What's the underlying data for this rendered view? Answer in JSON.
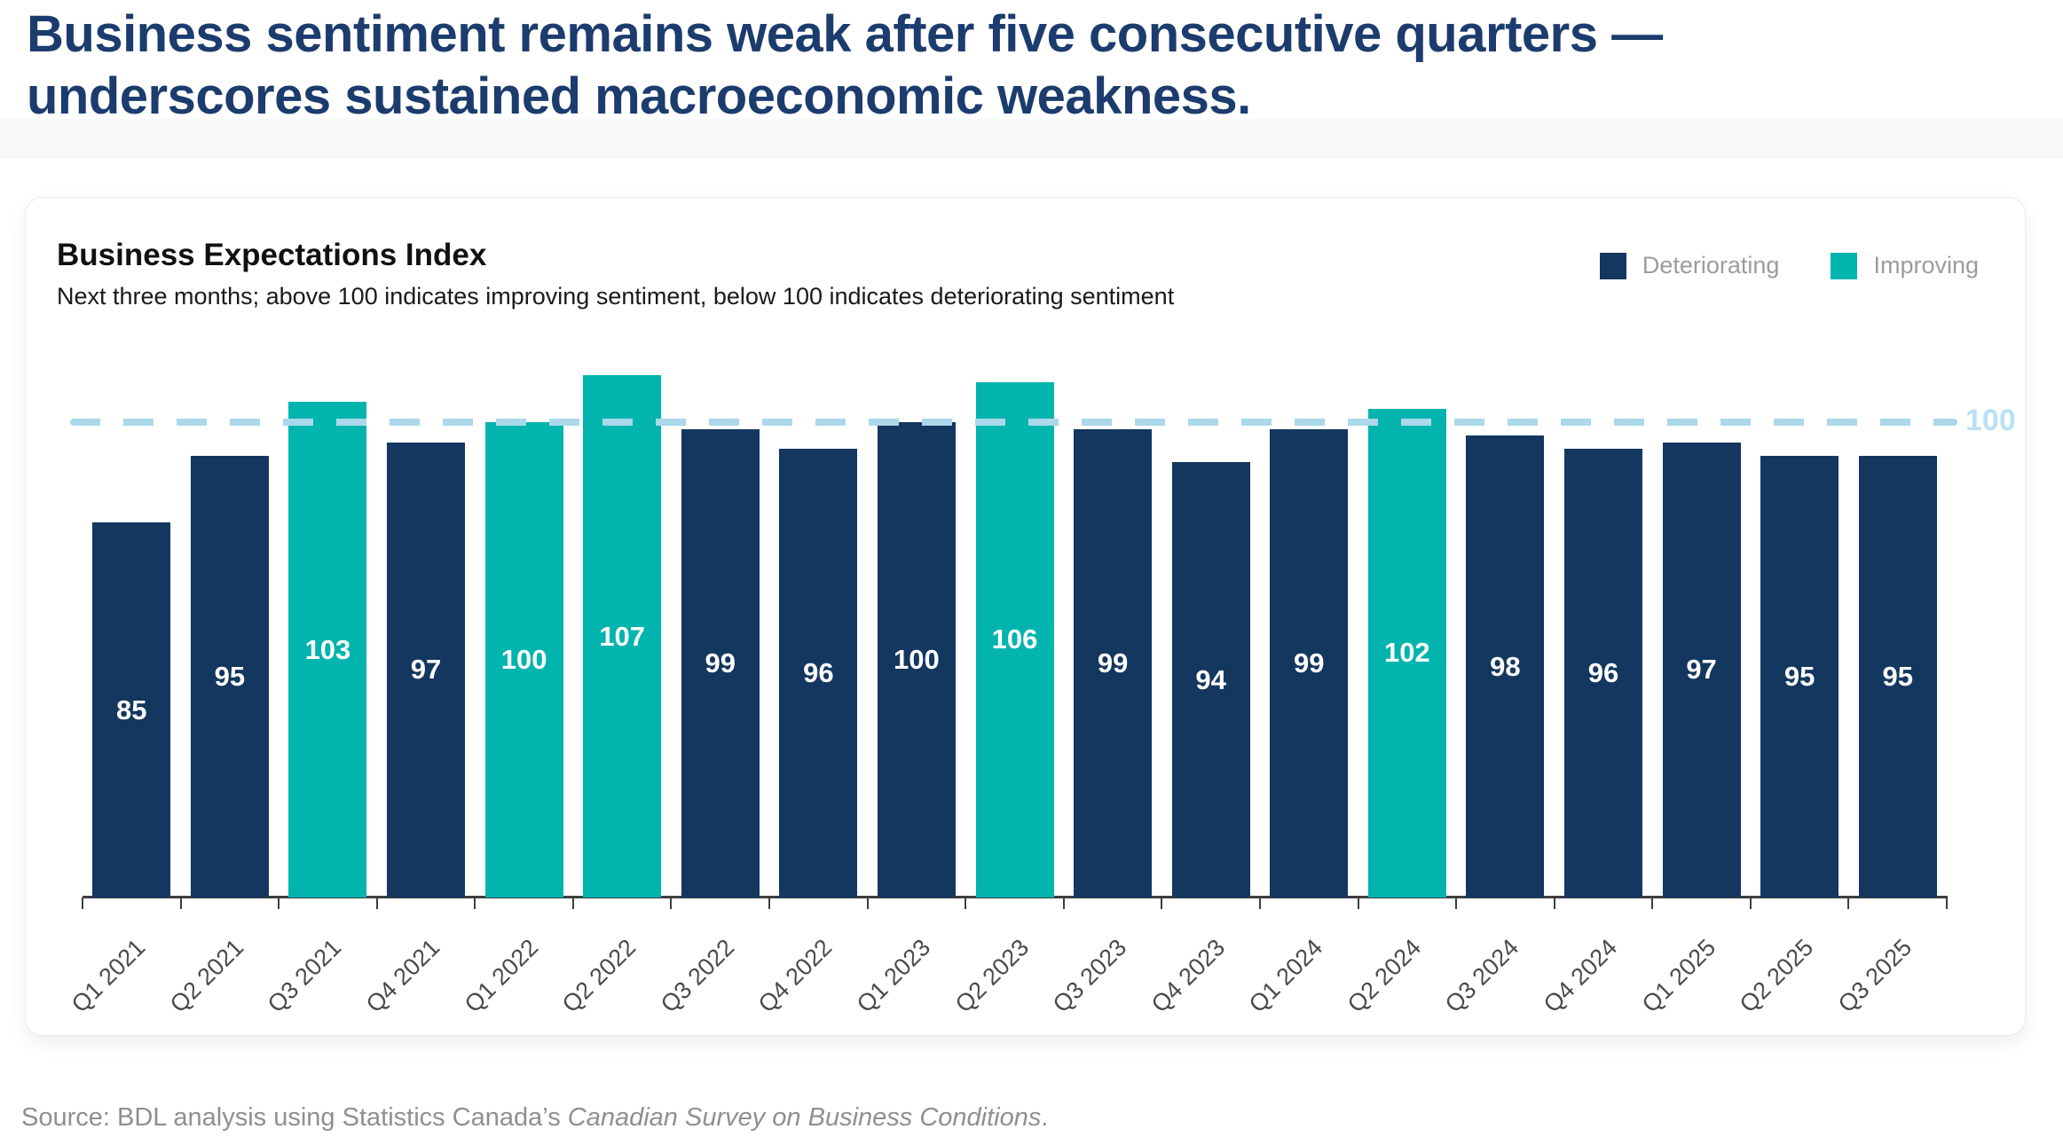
{
  "page": {
    "headline_line1": "Business sentiment remains weak after five consecutive quarters —",
    "headline_line2": "underscores sustained macroeconomic weakness.",
    "source_prefix": "Source: BDL analysis using Statistics Canada’s ",
    "source_italic": "Canadian Survey on Business Conditions",
    "source_suffix": "."
  },
  "card": {
    "title": "Business Expectations Index",
    "subtitle": "Next three months; above 100 indicates improving sentiment, below 100 indicates deteriorating sentiment"
  },
  "chart_data": {
    "type": "bar",
    "title": "Business Expectations Index",
    "subtitle": "Next three months; above 100 indicates improving sentiment, below 100 indicates deteriorating sentiment",
    "categories": [
      "Q1 2021",
      "Q2 2021",
      "Q3 2021",
      "Q4 2021",
      "Q1 2022",
      "Q2 2022",
      "Q3 2022",
      "Q4 2022",
      "Q1 2023",
      "Q2 2023",
      "Q3 2023",
      "Q4 2023",
      "Q1 2024",
      "Q2 2024",
      "Q3 2024",
      "Q4 2024",
      "Q1 2025",
      "Q2 2025",
      "Q3 2025"
    ],
    "values": [
      85,
      95,
      103,
      97,
      100,
      107,
      99,
      96,
      100,
      106,
      99,
      94,
      99,
      102,
      98,
      96,
      97,
      95,
      95
    ],
    "bar_status": [
      "deteriorating",
      "deteriorating",
      "improving",
      "deteriorating",
      "improving",
      "improving",
      "deteriorating",
      "deteriorating",
      "deteriorating",
      "improving",
      "deteriorating",
      "deteriorating",
      "deteriorating",
      "improving",
      "deteriorating",
      "deteriorating",
      "deteriorating",
      "deteriorating",
      "deteriorating"
    ],
    "value_labels_shown": true,
    "reference_line": {
      "value": 100,
      "label": "100"
    },
    "legend": [
      {
        "label": "Deteriorating",
        "status": "deteriorating",
        "color": "#13375F"
      },
      {
        "label": "Improving",
        "status": "improving",
        "color": "#01B4AE"
      }
    ],
    "legend_position": "top-right",
    "grid": false,
    "xlabel": "",
    "ylabel": "",
    "ylim": [
      29,
      110
    ]
  },
  "colors": {
    "deteriorating": "#13375F",
    "improving": "#01B4AE",
    "reference_line": "#ABD8EA",
    "reference_label": "#B9E1F3",
    "headline": "#1C3C6E",
    "legend_text": "#9C9C9C",
    "axis": "#3F3F3F",
    "tick_label": "#4A4A4A",
    "source_text": "#8F8F8F"
  }
}
